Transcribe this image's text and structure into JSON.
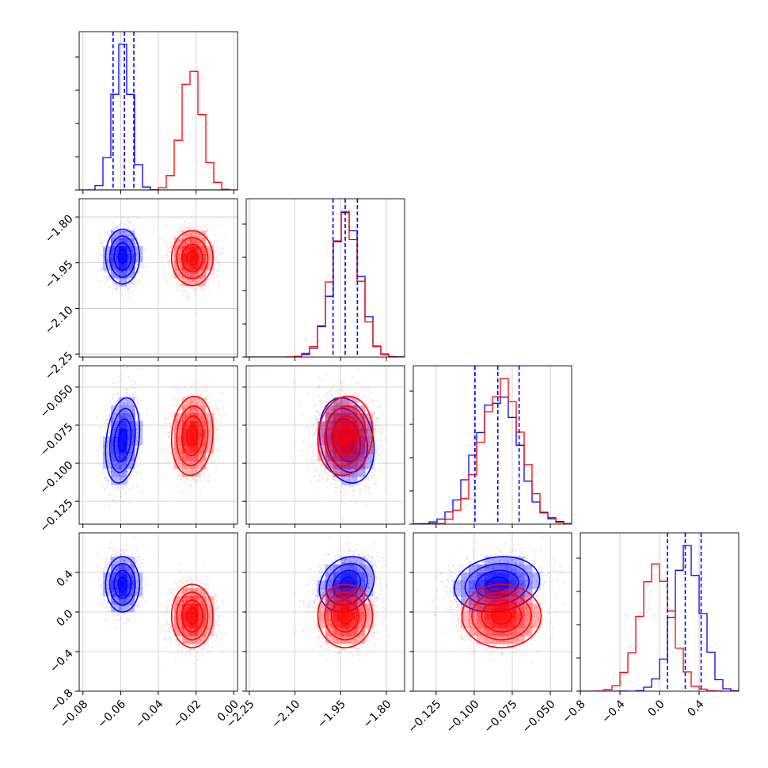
{
  "chart_data": {
    "type": "corner",
    "series": [
      {
        "name": "",
        "color": "#0000ff",
        "mean": [
          -0.059,
          -1.93,
          -0.085,
          0.28
        ],
        "std": [
          0.0045,
          0.045,
          0.014,
          0.14
        ],
        "corr": [
          [
            1,
            0,
            0.25,
            0
          ],
          [
            0,
            1,
            -0.2,
            0.2
          ],
          [
            0.25,
            -0.2,
            1,
            0.15
          ],
          [
            0,
            0.2,
            0.15,
            1
          ]
        ],
        "quantile_lines": [
          [
            -0.064,
            -0.058,
            -0.053
          ],
          [
            -1.975,
            -1.935,
            -1.895
          ],
          [
            -0.0995,
            -0.0845,
            -0.0705
          ],
          [
            0.08,
            0.26,
            0.42
          ]
        ]
      },
      {
        "name": "",
        "color": "#ff0000",
        "mean": [
          -0.022,
          -1.935,
          -0.082,
          -0.04
        ],
        "std": [
          0.0055,
          0.045,
          0.013,
          0.16
        ],
        "corr": [
          [
            1,
            0,
            0.1,
            0
          ],
          [
            0,
            1,
            0.1,
            0
          ],
          [
            0.1,
            0.1,
            1,
            0
          ],
          [
            0,
            0,
            0,
            1
          ]
        ],
        "quantile_lines": []
      }
    ],
    "axes": [
      {
        "range": [
          -0.082,
          0.002
        ],
        "ticks": [
          "−0.08",
          "−0.06",
          "−0.04",
          "−0.02",
          "0.00"
        ],
        "tick_values": [
          -0.08,
          -0.06,
          -0.04,
          -0.02,
          0.0
        ]
      },
      {
        "range": [
          -2.26,
          -1.74
        ],
        "ticks": [
          "−2.25",
          "−2.10",
          "−1.95",
          "−1.80"
        ],
        "tick_values": [
          -2.25,
          -2.1,
          -1.95,
          -1.8
        ]
      },
      {
        "range": [
          -0.14,
          -0.036
        ],
        "ticks": [
          "−0.125",
          "−0.100",
          "−0.075",
          "−0.050"
        ],
        "tick_values": [
          -0.125,
          -0.1,
          -0.075,
          -0.05
        ]
      },
      {
        "range": [
          -0.8,
          0.8
        ],
        "ticks": [
          "−0.8",
          "−0.4",
          "0.0",
          "0.4"
        ],
        "tick_values": [
          -0.8,
          -0.4,
          0.0,
          0.4
        ]
      }
    ],
    "bins": 20,
    "grid": true
  }
}
